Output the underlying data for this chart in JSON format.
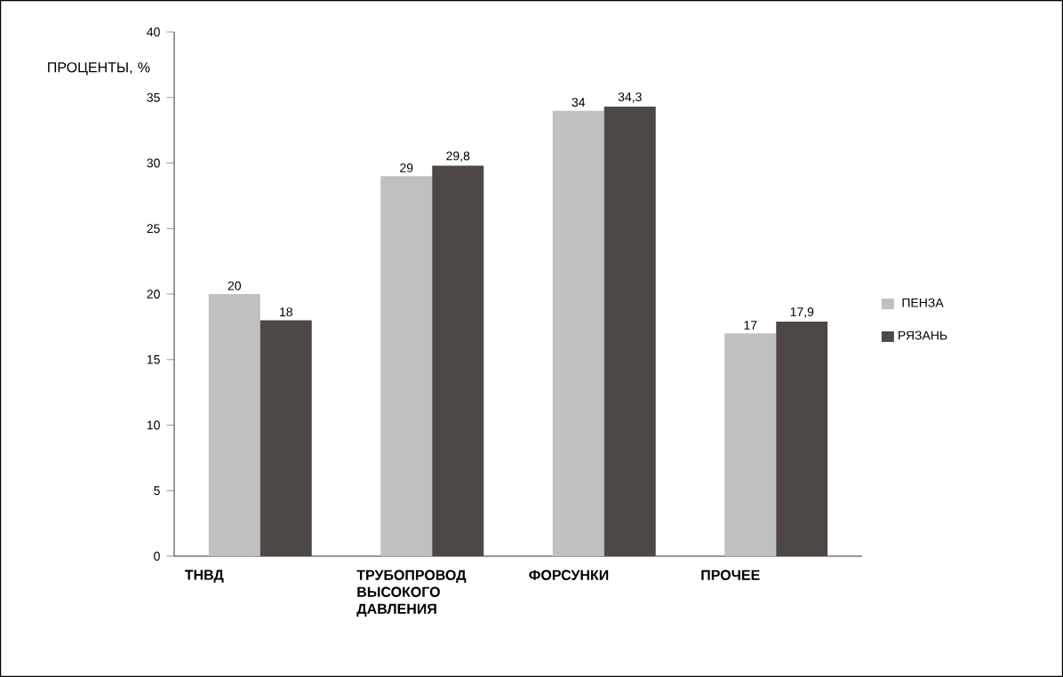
{
  "chart_data": {
    "type": "bar",
    "ylabel": "ПРОЦЕНТЫ, %",
    "categories": [
      "ТНВД",
      "ТРУБОПРОВОД ВЫСОКОГО ДАВЛЕНИЯ",
      "ФОРСУНКИ",
      "ПРОЧЕЕ"
    ],
    "series": [
      {
        "name": "ПЕНЗА",
        "color": "#c0c0c0",
        "values": [
          20,
          29,
          34,
          17
        ],
        "value_labels": [
          "20",
          "29",
          "34",
          "17"
        ]
      },
      {
        "name": "РЯЗАНЬ",
        "color": "#4d4846",
        "values": [
          18,
          29.8,
          34.3,
          17.9
        ],
        "value_labels": [
          "18",
          "29,8",
          "34,3",
          "17,9"
        ]
      }
    ],
    "ylim": [
      0,
      40
    ],
    "yticks": [
      0,
      5,
      10,
      15,
      20,
      25,
      30,
      35,
      40
    ],
    "legend": "right"
  }
}
